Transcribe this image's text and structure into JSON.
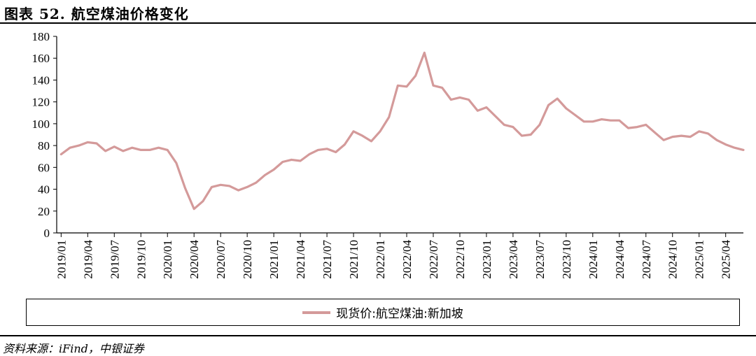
{
  "figure": {
    "title": "图表 52. 航空煤油价格变化",
    "source": "资料来源：iFind，中银证券"
  },
  "colors": {
    "series": "#d49a9a",
    "axis": "#000000"
  },
  "chart_data": {
    "type": "line",
    "title": "",
    "xlabel": "",
    "ylabel": "",
    "ylim": [
      0,
      180
    ],
    "yticks": [
      0,
      20,
      40,
      60,
      80,
      100,
      120,
      140,
      160,
      180
    ],
    "x_tick_labels": [
      "2019/01",
      "2019/04",
      "2019/07",
      "2019/10",
      "2020/01",
      "2020/04",
      "2020/07",
      "2020/10",
      "2021/01",
      "2021/04",
      "2021/07",
      "2021/10",
      "2022/01",
      "2022/04",
      "2022/07",
      "2022/10",
      "2023/01",
      "2023/04",
      "2023/07",
      "2023/10",
      "2024/01",
      "2024/04",
      "2024/07",
      "2024/10",
      "2025/01",
      "2025/04"
    ],
    "legend_position": "bottom",
    "grid": false,
    "x": [
      "2019/01",
      "2019/02",
      "2019/03",
      "2019/04",
      "2019/05",
      "2019/06",
      "2019/07",
      "2019/08",
      "2019/09",
      "2019/10",
      "2019/11",
      "2019/12",
      "2020/01",
      "2020/02",
      "2020/03",
      "2020/04",
      "2020/05",
      "2020/06",
      "2020/07",
      "2020/08",
      "2020/09",
      "2020/10",
      "2020/11",
      "2020/12",
      "2021/01",
      "2021/02",
      "2021/03",
      "2021/04",
      "2021/05",
      "2021/06",
      "2021/07",
      "2021/08",
      "2021/09",
      "2021/10",
      "2021/11",
      "2021/12",
      "2022/01",
      "2022/02",
      "2022/03",
      "2022/04",
      "2022/05",
      "2022/06",
      "2022/07",
      "2022/08",
      "2022/09",
      "2022/10",
      "2022/11",
      "2022/12",
      "2023/01",
      "2023/02",
      "2023/03",
      "2023/04",
      "2023/05",
      "2023/06",
      "2023/07",
      "2023/08",
      "2023/09",
      "2023/10",
      "2023/11",
      "2023/12",
      "2024/01",
      "2024/02",
      "2024/03",
      "2024/04",
      "2024/05",
      "2024/06",
      "2024/07",
      "2024/08",
      "2024/09",
      "2024/10",
      "2024/11",
      "2024/12",
      "2025/01",
      "2025/02",
      "2025/03",
      "2025/04",
      "2025/05",
      "2025/06"
    ],
    "series": [
      {
        "name": "现货价:航空煤油:新加坡",
        "values": [
          72,
          78,
          80,
          83,
          82,
          75,
          79,
          75,
          78,
          76,
          76,
          78,
          76,
          64,
          41,
          22,
          29,
          42,
          44,
          43,
          39,
          42,
          46,
          53,
          58,
          65,
          67,
          66,
          72,
          76,
          77,
          74,
          81,
          93,
          89,
          84,
          93,
          106,
          135,
          134,
          144,
          165,
          135,
          133,
          122,
          124,
          122,
          112,
          115,
          107,
          99,
          97,
          89,
          90,
          99,
          117,
          123,
          114,
          108,
          102,
          102,
          104,
          103,
          103,
          96,
          97,
          99,
          92,
          85,
          88,
          89,
          88,
          93,
          91,
          85,
          81,
          78,
          76
        ]
      }
    ]
  },
  "legend": {
    "label": "现货价:航空煤油:新加坡"
  }
}
